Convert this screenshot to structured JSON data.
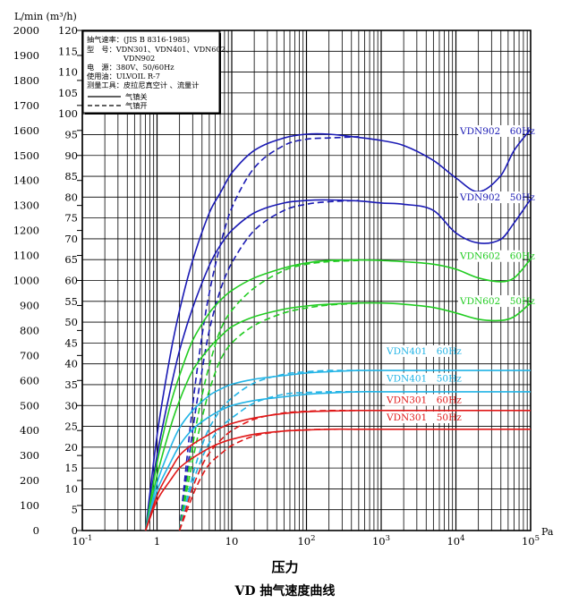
{
  "chart_data": {
    "type": "line",
    "title": "VD 抽气速度曲线",
    "xlabel": "压力",
    "x_unit": "Pa",
    "y_unit_left": "L/min",
    "y_unit_right": "(m³/h)",
    "x_scale": "log",
    "xlim": [
      0.1,
      100000
    ],
    "x_ticks": [
      {
        "base": "10",
        "exp": "-1"
      },
      {
        "base": "1",
        "exp": ""
      },
      {
        "base": "10",
        "exp": ""
      },
      {
        "base": "10",
        "exp": "2"
      },
      {
        "base": "10",
        "exp": "3"
      },
      {
        "base": "10",
        "exp": "4"
      },
      {
        "base": "10",
        "exp": "5"
      }
    ],
    "ylim_left": [
      0,
      2000
    ],
    "ylim_right": [
      0,
      120
    ],
    "y_ticks_left": [
      "0",
      "100",
      "200",
      "300",
      "400",
      "500",
      "600",
      "700",
      "800",
      "900",
      "1000",
      "1100",
      "1200",
      "1300",
      "1400",
      "1500",
      "1600",
      "1700",
      "1800",
      "1900",
      "2000"
    ],
    "y_ticks_right": [
      "0",
      "5",
      "10",
      "15",
      "20",
      "25",
      "30",
      "35",
      "40",
      "45",
      "50",
      "55",
      "60",
      "65",
      "70",
      "75",
      "80",
      "85",
      "90",
      "95",
      "100",
      "105",
      "110",
      "115",
      "120"
    ],
    "grid": true,
    "legend_box": {
      "lines": [
        "抽气速率：(JIS B 8316-1985)",
        "型　号：VDN301、VDN401、VDN602、",
        "VDN902",
        "电　源：380V、50/60Hz",
        "使用油：ULVOIL R-7",
        "测量工具：皮拉尼真空计 、流量计"
      ],
      "solid_label": "气镇关",
      "dashed_label": "气镇开"
    },
    "series": [
      {
        "name": "VDN902 60Hz",
        "color": "#1a1ab4",
        "style": "solid",
        "x": [
          0.7,
          1,
          1.5,
          2,
          3,
          5,
          7,
          10,
          20,
          50,
          100,
          200,
          500,
          1000,
          2000,
          5000,
          10000,
          20000,
          40000,
          60000,
          100000
        ],
        "y": [
          0,
          380,
          700,
          880,
          1080,
          1270,
          1350,
          1430,
          1520,
          1570,
          1585,
          1585,
          1572,
          1560,
          1540,
          1480,
          1410,
          1355,
          1420,
          1520,
          1605
        ]
      },
      {
        "name": "VDN902 50Hz",
        "color": "#1a1ab4",
        "style": "solid",
        "x": [
          0.7,
          1,
          1.5,
          2,
          3,
          5,
          7,
          10,
          20,
          50,
          100,
          200,
          500,
          1000,
          2000,
          5000,
          10000,
          20000,
          40000,
          60000,
          100000
        ],
        "y": [
          0,
          300,
          560,
          720,
          890,
          1060,
          1140,
          1200,
          1270,
          1310,
          1320,
          1322,
          1318,
          1310,
          1305,
          1280,
          1190,
          1150,
          1165,
          1230,
          1325
        ]
      },
      {
        "name": "VDN902 60Hz",
        "color": "#1a1ab4",
        "style": "dashed",
        "x": [
          2,
          3,
          4,
          5,
          7,
          10,
          20,
          50,
          100,
          200,
          500
        ],
        "y": [
          0,
          500,
          780,
          950,
          1140,
          1290,
          1450,
          1540,
          1565,
          1570,
          1575
        ]
      },
      {
        "name": "VDN902 50Hz",
        "color": "#1a1ab4",
        "style": "dashed",
        "x": [
          2,
          3,
          4,
          5,
          7,
          10,
          20,
          50,
          100,
          200,
          500
        ],
        "y": [
          0,
          400,
          640,
          800,
          960,
          1070,
          1200,
          1280,
          1305,
          1315,
          1320
        ]
      },
      {
        "name": "VDN602 60Hz",
        "color": "#22cc22",
        "style": "solid",
        "x": [
          0.7,
          1,
          1.5,
          2,
          3,
          5,
          7,
          10,
          20,
          50,
          100,
          200,
          500,
          1000,
          2000,
          5000,
          10000,
          20000,
          40000,
          60000,
          100000
        ],
        "y": [
          0,
          270,
          500,
          620,
          760,
          870,
          920,
          960,
          1010,
          1050,
          1070,
          1080,
          1082,
          1080,
          1075,
          1065,
          1045,
          1010,
          995,
          1010,
          1085
        ]
      },
      {
        "name": "VDN602 50Hz",
        "color": "#22cc22",
        "style": "solid",
        "x": [
          0.7,
          1,
          1.5,
          2,
          3,
          5,
          7,
          10,
          20,
          50,
          100,
          200,
          500,
          1000,
          2000,
          5000,
          10000,
          20000,
          40000,
          60000,
          100000
        ],
        "y": [
          0,
          220,
          410,
          520,
          640,
          730,
          775,
          815,
          855,
          885,
          898,
          905,
          910,
          910,
          905,
          892,
          870,
          845,
          840,
          855,
          910
        ]
      },
      {
        "name": "VDN602 60Hz",
        "color": "#22cc22",
        "style": "dashed",
        "x": [
          2,
          3,
          4,
          5,
          7,
          10,
          20,
          50,
          100,
          200,
          500
        ],
        "y": [
          0,
          340,
          540,
          660,
          800,
          880,
          970,
          1040,
          1065,
          1075,
          1080
        ]
      },
      {
        "name": "VDN602 50Hz",
        "color": "#22cc22",
        "style": "dashed",
        "x": [
          2,
          3,
          4,
          5,
          7,
          10,
          20,
          50,
          100,
          200,
          500
        ],
        "y": [
          0,
          280,
          450,
          560,
          680,
          750,
          820,
          870,
          890,
          902,
          908
        ]
      },
      {
        "name": "VDN401 60Hz",
        "color": "#22b4e6",
        "style": "solid",
        "x": [
          0.7,
          1,
          1.5,
          2,
          3,
          5,
          7,
          10,
          20,
          50,
          100,
          200,
          500,
          1000,
          10000,
          100000
        ],
        "y": [
          0,
          190,
          330,
          410,
          480,
          540,
          565,
          585,
          605,
          620,
          630,
          635,
          640,
          640,
          640,
          640
        ]
      },
      {
        "name": "VDN401 50Hz",
        "color": "#22b4e6",
        "style": "solid",
        "x": [
          0.7,
          1,
          1.5,
          2,
          3,
          5,
          7,
          10,
          20,
          50,
          100,
          200,
          500,
          1000,
          10000,
          100000
        ],
        "y": [
          0,
          160,
          270,
          340,
          405,
          455,
          480,
          500,
          520,
          535,
          545,
          550,
          555,
          555,
          555,
          555
        ]
      },
      {
        "name": "VDN401 60Hz",
        "color": "#22b4e6",
        "style": "dashed",
        "x": [
          2,
          3,
          4,
          5,
          7,
          10,
          20,
          50,
          100,
          200,
          500
        ],
        "y": [
          0,
          220,
          340,
          410,
          480,
          530,
          590,
          625,
          635,
          640,
          640
        ]
      },
      {
        "name": "VDN401 50Hz",
        "color": "#22b4e6",
        "style": "dashed",
        "x": [
          2,
          3,
          4,
          5,
          7,
          10,
          20,
          50,
          100,
          200,
          500
        ],
        "y": [
          0,
          190,
          290,
          350,
          410,
          450,
          510,
          545,
          552,
          555,
          555
        ]
      },
      {
        "name": "VDN301 60Hz",
        "color": "#e01818",
        "style": "solid",
        "x": [
          0.7,
          1,
          1.5,
          2,
          3,
          5,
          7,
          10,
          20,
          50,
          100,
          200,
          500,
          1000,
          10000,
          100000
        ],
        "y": [
          0,
          140,
          240,
          300,
          345,
          385,
          410,
          428,
          450,
          468,
          475,
          478,
          480,
          480,
          480,
          480
        ]
      },
      {
        "name": "VDN301 50Hz",
        "color": "#e01818",
        "style": "solid",
        "x": [
          0.7,
          1,
          1.5,
          2,
          3,
          5,
          7,
          10,
          20,
          50,
          100,
          200,
          500,
          1000,
          10000,
          100000
        ],
        "y": [
          0,
          120,
          200,
          250,
          290,
          330,
          350,
          365,
          385,
          398,
          402,
          405,
          405,
          405,
          405,
          405
        ]
      },
      {
        "name": "VDN301 60Hz",
        "color": "#e01818",
        "style": "dashed",
        "x": [
          2,
          3,
          4,
          5,
          7,
          10,
          20,
          50,
          100,
          200,
          500
        ],
        "y": [
          0,
          170,
          260,
          310,
          360,
          400,
          445,
          470,
          477,
          480,
          480
        ]
      },
      {
        "name": "VDN301 50Hz",
        "color": "#e01818",
        "style": "dashed",
        "x": [
          2,
          3,
          4,
          5,
          7,
          10,
          20,
          50,
          100,
          200,
          500
        ],
        "y": [
          0,
          140,
          220,
          265,
          305,
          340,
          378,
          398,
          403,
          405,
          405
        ]
      }
    ],
    "curve_labels": [
      {
        "text": "VDN902　60Hz",
        "color": "#1a1ab4",
        "y": 1585
      },
      {
        "text": "VDN902　50Hz",
        "color": "#1a1ab4",
        "y": 1320
      },
      {
        "text": "VDN602　60Hz",
        "color": "#22cc22",
        "y": 1085
      },
      {
        "text": "VDN602　50Hz",
        "color": "#22cc22",
        "y": 905
      },
      {
        "text": "VDN401　60Hz",
        "color": "#22b4e6",
        "y": 705
      },
      {
        "text": "VDN401　50Hz",
        "color": "#22b4e6",
        "y": 595
      },
      {
        "text": "VDN301　60Hz",
        "color": "#e01818",
        "y": 510
      },
      {
        "text": "VDN301　50Hz",
        "color": "#e01818",
        "y": 440
      }
    ]
  }
}
